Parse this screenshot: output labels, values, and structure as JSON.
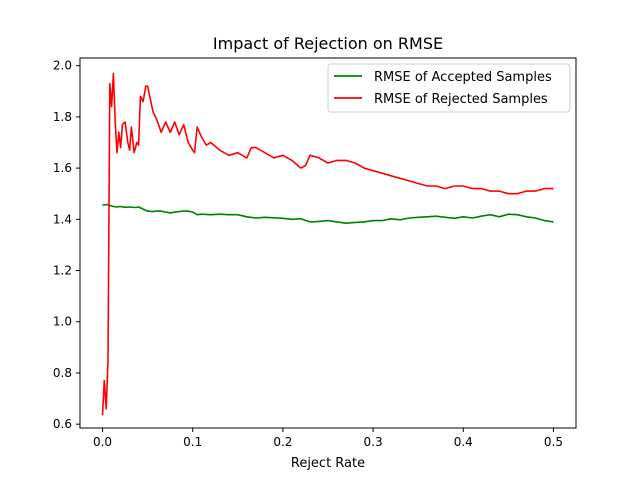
{
  "chart_data": {
    "type": "line",
    "title": "Impact of Rejection on RMSE",
    "xlabel": "Reject Rate",
    "ylabel": "",
    "xlim": [
      -0.025,
      0.525
    ],
    "ylim": [
      0.585,
      2.03
    ],
    "xticks": [
      0.0,
      0.1,
      0.2,
      0.3,
      0.4,
      0.5
    ],
    "xtick_labels": [
      "0.0",
      "0.1",
      "0.2",
      "0.3",
      "0.4",
      "0.5"
    ],
    "yticks": [
      0.6,
      0.8,
      1.0,
      1.2,
      1.4,
      1.6,
      1.8,
      2.0
    ],
    "ytick_labels": [
      "0.6",
      "0.8",
      "1.0",
      "1.2",
      "1.4",
      "1.6",
      "1.8",
      "2.0"
    ],
    "grid": false,
    "legend_position": "top-right",
    "series": [
      {
        "name": "RMSE of Accepted Samples",
        "color": "#008000",
        "x": [
          0.0,
          0.005,
          0.01,
          0.015,
          0.02,
          0.025,
          0.03,
          0.035,
          0.04,
          0.045,
          0.05,
          0.055,
          0.06,
          0.065,
          0.07,
          0.075,
          0.08,
          0.085,
          0.09,
          0.095,
          0.1,
          0.105,
          0.11,
          0.12,
          0.13,
          0.14,
          0.15,
          0.16,
          0.17,
          0.18,
          0.19,
          0.2,
          0.21,
          0.22,
          0.23,
          0.24,
          0.25,
          0.26,
          0.27,
          0.28,
          0.29,
          0.3,
          0.31,
          0.32,
          0.33,
          0.34,
          0.35,
          0.36,
          0.37,
          0.38,
          0.39,
          0.4,
          0.41,
          0.42,
          0.43,
          0.44,
          0.45,
          0.46,
          0.47,
          0.48,
          0.49,
          0.5
        ],
        "y": [
          1.455,
          1.458,
          1.452,
          1.448,
          1.45,
          1.447,
          1.448,
          1.446,
          1.448,
          1.44,
          1.432,
          1.43,
          1.432,
          1.432,
          1.428,
          1.425,
          1.428,
          1.43,
          1.432,
          1.432,
          1.428,
          1.418,
          1.42,
          1.418,
          1.42,
          1.418,
          1.418,
          1.41,
          1.405,
          1.408,
          1.406,
          1.404,
          1.4,
          1.402,
          1.39,
          1.392,
          1.395,
          1.39,
          1.385,
          1.388,
          1.39,
          1.395,
          1.395,
          1.402,
          1.398,
          1.405,
          1.408,
          1.41,
          1.412,
          1.408,
          1.404,
          1.41,
          1.405,
          1.412,
          1.418,
          1.41,
          1.42,
          1.418,
          1.41,
          1.405,
          1.395,
          1.39
        ]
      },
      {
        "name": "RMSE of Rejected Samples",
        "color": "#ff0000",
        "x": [
          0.0,
          0.002,
          0.004,
          0.006,
          0.008,
          0.01,
          0.012,
          0.014,
          0.016,
          0.018,
          0.02,
          0.022,
          0.025,
          0.028,
          0.03,
          0.032,
          0.035,
          0.038,
          0.04,
          0.042,
          0.045,
          0.048,
          0.05,
          0.053,
          0.056,
          0.06,
          0.065,
          0.07,
          0.075,
          0.08,
          0.085,
          0.09,
          0.095,
          0.1,
          0.102,
          0.105,
          0.11,
          0.115,
          0.12,
          0.13,
          0.14,
          0.15,
          0.16,
          0.165,
          0.17,
          0.18,
          0.19,
          0.2,
          0.21,
          0.22,
          0.225,
          0.23,
          0.24,
          0.25,
          0.26,
          0.27,
          0.28,
          0.29,
          0.3,
          0.31,
          0.32,
          0.33,
          0.34,
          0.35,
          0.36,
          0.37,
          0.38,
          0.39,
          0.4,
          0.41,
          0.42,
          0.43,
          0.44,
          0.45,
          0.46,
          0.47,
          0.48,
          0.49,
          0.5
        ],
        "y": [
          0.635,
          0.77,
          0.66,
          0.85,
          1.93,
          1.84,
          1.97,
          1.78,
          1.66,
          1.74,
          1.68,
          1.77,
          1.78,
          1.7,
          1.67,
          1.76,
          1.66,
          1.7,
          1.69,
          1.88,
          1.86,
          1.92,
          1.92,
          1.87,
          1.82,
          1.79,
          1.74,
          1.78,
          1.74,
          1.78,
          1.73,
          1.77,
          1.7,
          1.67,
          1.66,
          1.76,
          1.72,
          1.69,
          1.7,
          1.67,
          1.65,
          1.66,
          1.64,
          1.68,
          1.68,
          1.66,
          1.64,
          1.65,
          1.63,
          1.6,
          1.61,
          1.65,
          1.64,
          1.62,
          1.63,
          1.63,
          1.62,
          1.6,
          1.59,
          1.58,
          1.57,
          1.56,
          1.55,
          1.54,
          1.53,
          1.53,
          1.52,
          1.53,
          1.53,
          1.52,
          1.52,
          1.51,
          1.51,
          1.5,
          1.5,
          1.51,
          1.51,
          1.52,
          1.52
        ]
      }
    ]
  }
}
